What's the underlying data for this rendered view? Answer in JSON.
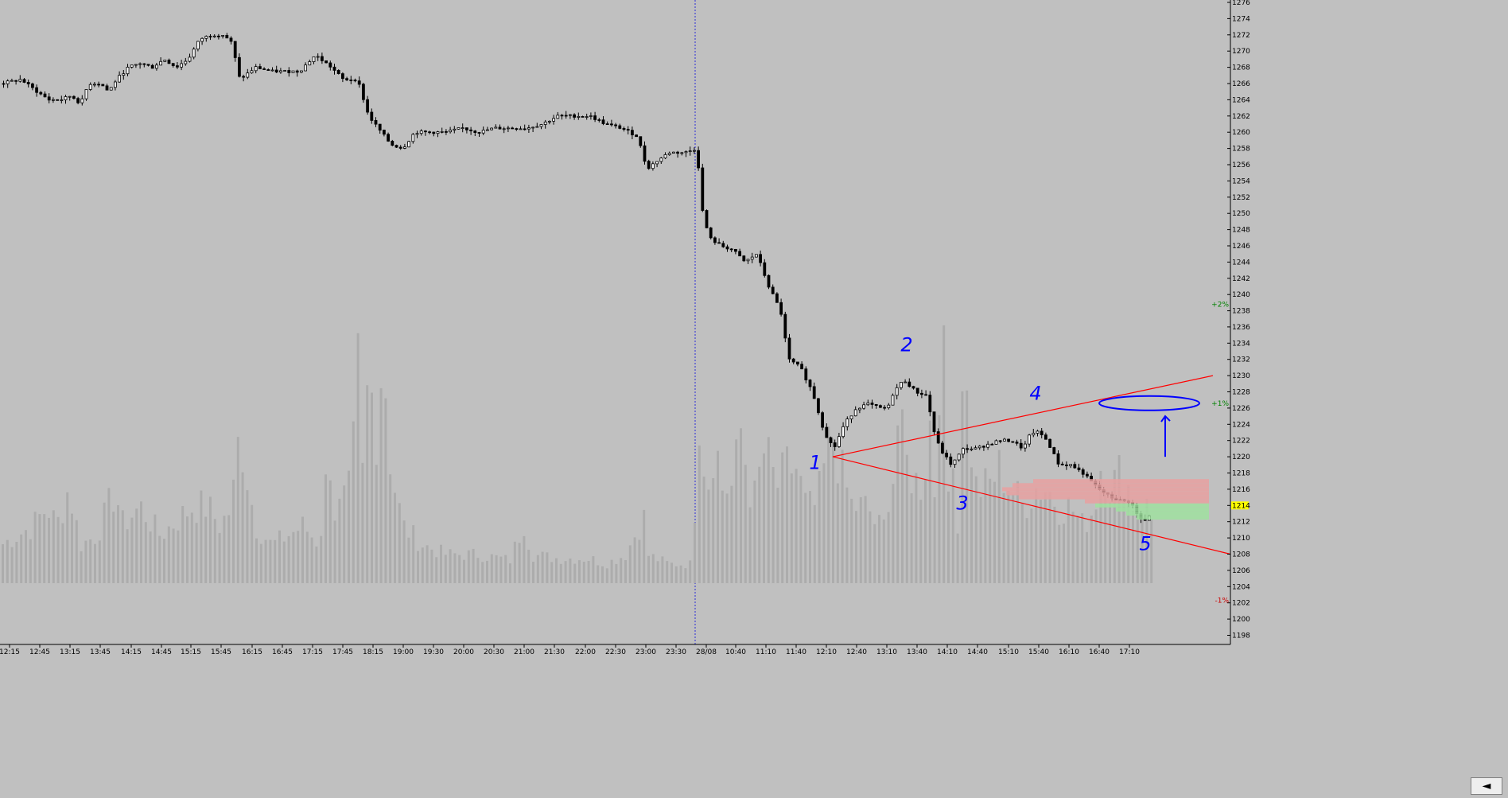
{
  "chart_data": {
    "type": "candlestick",
    "title": "",
    "xlabel": "",
    "ylabel": "",
    "ylim": [
      1198,
      1276
    ],
    "y_ticks": [
      1198,
      1200,
      1202,
      1204,
      1206,
      1208,
      1210,
      1212,
      1214,
      1216,
      1218,
      1220,
      1222,
      1224,
      1226,
      1228,
      1230,
      1232,
      1234,
      1236,
      1238,
      1240,
      1242,
      1244,
      1246,
      1248,
      1250,
      1252,
      1254,
      1256,
      1258,
      1260,
      1262,
      1264,
      1266,
      1268,
      1270,
      1272,
      1274,
      1276
    ],
    "x_ticks": [
      "12:15",
      "12:45",
      "13:15",
      "13:45",
      "14:15",
      "14:45",
      "15:15",
      "15:45",
      "16:15",
      "16:45",
      "17:15",
      "17:45",
      "18:15",
      "19:00",
      "19:30",
      "20:00",
      "20:30",
      "21:00",
      "21:30",
      "22:00",
      "22:30",
      "23:00",
      "23:30",
      "28/08",
      "10:40",
      "11:10",
      "11:40",
      "12:10",
      "12:40",
      "13:10",
      "13:40",
      "14:10",
      "14:40",
      "15:10",
      "15:40",
      "16:10",
      "16:40",
      "17:10"
    ],
    "session_break": "28/08",
    "current_price": "1214",
    "percent_markers": [
      {
        "label": "+2%",
        "value": 1238.8,
        "color": "#008000"
      },
      {
        "label": "+1%",
        "value": 1226.6,
        "color": "#008000"
      },
      {
        "label": "-1%",
        "value": 1202.3,
        "color": "#cc0000"
      }
    ],
    "price_anchors": [
      [
        0,
        1266
      ],
      [
        25,
        1266.5
      ],
      [
        45,
        1265
      ],
      [
        60,
        1264
      ],
      [
        75,
        1264
      ],
      [
        88,
        1264.5
      ],
      [
        100,
        1263.5
      ],
      [
        110,
        1266
      ],
      [
        125,
        1266
      ],
      [
        135,
        1265
      ],
      [
        145,
        1266.5
      ],
      [
        160,
        1268
      ],
      [
        175,
        1268.5
      ],
      [
        190,
        1268
      ],
      [
        205,
        1269
      ],
      [
        220,
        1268
      ],
      [
        235,
        1269
      ],
      [
        250,
        1271.5
      ],
      [
        265,
        1272
      ],
      [
        280,
        1272
      ],
      [
        290,
        1271
      ],
      [
        300,
        1266.5
      ],
      [
        320,
        1268
      ],
      [
        340,
        1267.5
      ],
      [
        360,
        1267.5
      ],
      [
        375,
        1267.5
      ],
      [
        395,
        1269.5
      ],
      [
        415,
        1268
      ],
      [
        430,
        1266.5
      ],
      [
        448,
        1266.5
      ],
      [
        462,
        1262
      ],
      [
        478,
        1260
      ],
      [
        490,
        1258.5
      ],
      [
        505,
        1258
      ],
      [
        520,
        1260
      ],
      [
        540,
        1260
      ],
      [
        560,
        1260
      ],
      [
        580,
        1260.5
      ],
      [
        600,
        1260
      ],
      [
        620,
        1260.5
      ],
      [
        640,
        1260.5
      ],
      [
        660,
        1260.5
      ],
      [
        680,
        1261
      ],
      [
        700,
        1262
      ],
      [
        720,
        1262
      ],
      [
        740,
        1262
      ],
      [
        760,
        1261
      ],
      [
        780,
        1260.5
      ],
      [
        800,
        1259.5
      ],
      [
        812,
        1255.5
      ],
      [
        825,
        1256.5
      ],
      [
        840,
        1257.5
      ],
      [
        860,
        1257.5
      ],
      [
        875,
        1258
      ],
      [
        880,
        1251
      ],
      [
        890,
        1247
      ],
      [
        905,
        1246
      ],
      [
        920,
        1245.5
      ],
      [
        935,
        1244
      ],
      [
        950,
        1245
      ],
      [
        965,
        1241
      ],
      [
        980,
        1238
      ],
      [
        990,
        1232
      ],
      [
        1005,
        1231
      ],
      [
        1020,
        1228
      ],
      [
        1035,
        1223
      ],
      [
        1047,
        1221
      ],
      [
        1060,
        1224
      ],
      [
        1075,
        1226
      ],
      [
        1090,
        1226.5
      ],
      [
        1105,
        1226
      ],
      [
        1115,
        1226
      ],
      [
        1122,
        1228
      ],
      [
        1135,
        1229.5
      ],
      [
        1150,
        1228
      ],
      [
        1165,
        1227.5
      ],
      [
        1170,
        1224
      ],
      [
        1180,
        1221
      ],
      [
        1195,
        1219
      ],
      [
        1210,
        1221
      ],
      [
        1225,
        1221
      ],
      [
        1240,
        1221.5
      ],
      [
        1255,
        1222
      ],
      [
        1270,
        1222
      ],
      [
        1285,
        1221
      ],
      [
        1295,
        1223
      ],
      [
        1305,
        1223
      ],
      [
        1315,
        1222
      ],
      [
        1330,
        1219
      ],
      [
        1345,
        1219
      ],
      [
        1360,
        1218
      ],
      [
        1380,
        1216
      ],
      [
        1395,
        1215
      ],
      [
        1410,
        1214.5
      ],
      [
        1420,
        1214.5
      ],
      [
        1430,
        1212.5
      ],
      [
        1440,
        1212
      ],
      [
        1450,
        1214
      ]
    ],
    "volume_anchors": [
      [
        0,
        2
      ],
      [
        40,
        3
      ],
      [
        58,
        4
      ],
      [
        70,
        3
      ],
      [
        85,
        5
      ],
      [
        100,
        2
      ],
      [
        120,
        2.5
      ],
      [
        145,
        5
      ],
      [
        150,
        3
      ],
      [
        175,
        4
      ],
      [
        200,
        2.5
      ],
      [
        240,
        4
      ],
      [
        260,
        4
      ],
      [
        275,
        3
      ],
      [
        290,
        4
      ],
      [
        300,
        8
      ],
      [
        320,
        3
      ],
      [
        340,
        2
      ],
      [
        360,
        2.5
      ],
      [
        380,
        3
      ],
      [
        400,
        2
      ],
      [
        413,
        7
      ],
      [
        420,
        3.5
      ],
      [
        440,
        5
      ],
      [
        452,
        13.5
      ],
      [
        458,
        10
      ],
      [
        465,
        9
      ],
      [
        472,
        14
      ],
      [
        480,
        10
      ],
      [
        488,
        11
      ],
      [
        495,
        5
      ],
      [
        505,
        3
      ],
      [
        530,
        2
      ],
      [
        560,
        1.5
      ],
      [
        600,
        1.5
      ],
      [
        640,
        1.2
      ],
      [
        660,
        3.5
      ],
      [
        665,
        1.5
      ],
      [
        700,
        1.3
      ],
      [
        740,
        1.3
      ],
      [
        760,
        1
      ],
      [
        785,
        1.5
      ],
      [
        808,
        3.5
      ],
      [
        812,
        1.5
      ],
      [
        840,
        1
      ],
      [
        870,
        1
      ],
      [
        876,
        10
      ],
      [
        885,
        6
      ],
      [
        895,
        9
      ],
      [
        905,
        5
      ],
      [
        920,
        5
      ],
      [
        930,
        8
      ],
      [
        945,
        4
      ],
      [
        960,
        7
      ],
      [
        975,
        5
      ],
      [
        988,
        6
      ],
      [
        1000,
        6
      ],
      [
        1012,
        4
      ],
      [
        1025,
        4
      ],
      [
        1035,
        6
      ],
      [
        1045,
        8
      ],
      [
        1055,
        6
      ],
      [
        1070,
        4
      ],
      [
        1090,
        4
      ],
      [
        1100,
        3
      ],
      [
        1112,
        3
      ],
      [
        1124,
        9
      ],
      [
        1140,
        6
      ],
      [
        1155,
        5
      ],
      [
        1165,
        7
      ],
      [
        1175,
        12
      ],
      [
        1185,
        11
      ],
      [
        1195,
        10
      ],
      [
        1200,
        4
      ],
      [
        1206,
        13
      ],
      [
        1215,
        9
      ],
      [
        1225,
        5
      ],
      [
        1240,
        5
      ],
      [
        1255,
        6
      ],
      [
        1270,
        5
      ],
      [
        1285,
        4
      ],
      [
        1300,
        5
      ],
      [
        1315,
        5
      ],
      [
        1330,
        4
      ],
      [
        1345,
        4
      ],
      [
        1360,
        3
      ],
      [
        1375,
        4
      ],
      [
        1385,
        7
      ],
      [
        1395,
        5
      ],
      [
        1410,
        6
      ],
      [
        1425,
        4
      ],
      [
        1440,
        4
      ],
      [
        1450,
        3
      ]
    ],
    "volume_spikes": [
      [
        1205,
        2.6
      ],
      [
        1173,
        4.5
      ],
      [
        1124,
        5.2
      ],
      [
        1190,
        4.8
      ],
      [
        891,
        4.9
      ],
      [
        474,
        6.2
      ],
      [
        453,
        6.3
      ],
      [
        488,
        5.7
      ],
      [
        895,
        5.5
      ]
    ],
    "trendlines": [
      {
        "from": [
          1047,
          1220
        ],
        "to": [
          1525,
          1230
        ],
        "color": "#ff0000"
      },
      {
        "from": [
          1047,
          1220
        ],
        "to": [
          1547,
          1208
        ],
        "color": "#ff0000"
      }
    ],
    "annotations": [
      {
        "label": "1",
        "x": 1025,
        "y": 1218.5
      },
      {
        "label": "2",
        "x": 1140,
        "y": 1233
      },
      {
        "label": "3",
        "x": 1210,
        "y": 1213.5
      },
      {
        "label": "4",
        "x": 1302,
        "y": 1227
      },
      {
        "label": "5",
        "x": 1440,
        "y": 1208.5
      }
    ],
    "ellipse_target": {
      "x": 1445,
      "y": 1226.6
    },
    "arrow_up": {
      "x": 1465,
      "from": 1220,
      "to": 1225
    },
    "colors": {
      "up_candle": "#ffffff",
      "down_candle": "#000000",
      "volume": "#acacac",
      "background": "#c0c0c0",
      "trendline": "#ff0000",
      "annotation": "#0000ff",
      "current_price_bg": "#ffff00"
    }
  },
  "nav_button": {
    "icon": "left-arrow-icon",
    "glyph": "◄"
  }
}
